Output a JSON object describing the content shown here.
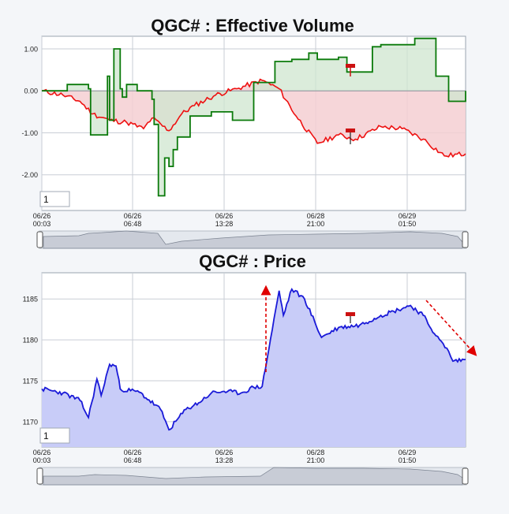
{
  "charts": [
    {
      "title": "QGC# : Effective Volume",
      "input_value": "1",
      "x_ticks": [
        {
          "date": "06/26",
          "time": "00:03"
        },
        {
          "date": "06/26",
          "time": "06:48"
        },
        {
          "date": "06/26",
          "time": "13:28"
        },
        {
          "date": "06/28",
          "time": "21:00"
        },
        {
          "date": "06/29",
          "time": "01:50"
        }
      ]
    },
    {
      "title": "QGC# : Price",
      "input_value": "1",
      "x_ticks": [
        {
          "date": "06/26",
          "time": "00:03"
        },
        {
          "date": "06/26",
          "time": "06:48"
        },
        {
          "date": "06/26",
          "time": "13:28"
        },
        {
          "date": "06/28",
          "time": "21:00"
        },
        {
          "date": "06/29",
          "time": "01:50"
        }
      ]
    }
  ],
  "colors": {
    "green_line": "#0a7a0a",
    "red_line": "#ee1111",
    "green_fill": "#cfe6cf",
    "red_fill": "#f5cfd2",
    "blue_line": "#1a1ad8",
    "blue_fill": "#c8ccf8",
    "marker": "#cc1111"
  },
  "chart_data": [
    {
      "type": "line",
      "title": "QGC# : Effective Volume",
      "x_tick_labels": [
        "06/26 00:03",
        "06/26 06:48",
        "06/26 13:28",
        "06/28 21:00",
        "06/29 01:50"
      ],
      "y_tick_labels": [
        "1.00",
        "0.00",
        "-1.00",
        "-2.00"
      ],
      "ylim": [
        -2.85,
        1.3
      ],
      "grid": true,
      "series": [
        {
          "color": "green",
          "x": [
            0,
            0.6,
            1.1,
            1.15,
            1.55,
            1.6,
            1.7,
            1.85,
            1.9,
            2.0,
            2.25,
            2.6,
            2.65,
            2.75,
            2.9,
            3.0,
            3.1,
            3.2,
            3.5,
            4.0,
            4.5,
            5.0,
            5.5,
            5.9,
            6.3,
            6.5,
            7.0,
            7.2,
            7.8,
            8.0,
            8.8,
            9.3,
            9.6,
            10.0
          ],
          "y": [
            0,
            0.15,
            0.05,
            -1.05,
            0.35,
            -0.7,
            1.0,
            0.05,
            -0.15,
            0.15,
            0.0,
            -0.2,
            -0.8,
            -2.5,
            -1.6,
            -1.8,
            -1.4,
            -1.1,
            -0.6,
            -0.5,
            -0.7,
            0.2,
            0.7,
            0.75,
            0.9,
            0.75,
            0.8,
            0.45,
            1.05,
            1.1,
            1.25,
            0.35,
            -0.25,
            0.0
          ]
        },
        {
          "color": "red",
          "x": [
            0,
            0.5,
            0.9,
            1.2,
            1.6,
            2.0,
            2.4,
            2.6,
            3.0,
            3.3,
            3.6,
            4.1,
            4.6,
            5.2,
            5.6,
            6.0,
            6.5,
            7.0,
            7.4,
            8.0,
            8.5,
            9.0,
            9.5,
            10.0
          ],
          "y": [
            0,
            -0.1,
            -0.25,
            -0.55,
            -0.7,
            -0.75,
            -0.9,
            -0.65,
            -0.95,
            -0.55,
            -0.35,
            -0.1,
            0.05,
            0.25,
            0.05,
            -0.6,
            -1.25,
            -1.05,
            -1.15,
            -0.85,
            -0.9,
            -1.15,
            -1.55,
            -1.5
          ]
        }
      ]
    },
    {
      "type": "area",
      "title": "QGC# : Price",
      "x_tick_labels": [
        "06/26 00:03",
        "06/26 06:48",
        "06/26 13:28",
        "06/28 21:00",
        "06/29 01:50"
      ],
      "y_tick_labels": [
        "1185",
        "1180",
        "1175",
        "1170"
      ],
      "ylim": [
        1166.9,
        1188.2
      ],
      "grid": true,
      "series": [
        {
          "color": "blue",
          "x": [
            0,
            0.5,
            0.9,
            1.1,
            1.3,
            1.4,
            1.6,
            1.75,
            1.85,
            2.3,
            2.8,
            3.0,
            3.4,
            3.7,
            4.0,
            4.3,
            4.7,
            5.0,
            5.2,
            5.6,
            5.7,
            5.9,
            6.2,
            6.6,
            7.0,
            7.5,
            8.0,
            8.3,
            8.7,
            9.0,
            9.3,
            9.6,
            9.7,
            10.0
          ],
          "y": [
            1174.0,
            1173.5,
            1172.6,
            1170.5,
            1175.2,
            1173.2,
            1177.0,
            1176.8,
            1174.0,
            1173.6,
            1171.5,
            1169.0,
            1171.5,
            1172.3,
            1173.5,
            1173.7,
            1173.5,
            1174.2,
            1174.3,
            1186.0,
            1183.0,
            1186.2,
            1185.0,
            1180.3,
            1181.5,
            1181.8,
            1183.0,
            1183.5,
            1184.2,
            1183.0,
            1180.5,
            1178.6,
            1177.4,
            1177.6
          ]
        }
      ],
      "annotations": [
        {
          "type": "arrow",
          "direction": "up",
          "style": "dashed red"
        },
        {
          "type": "arrow",
          "direction": "down-right",
          "style": "dashed red"
        }
      ]
    }
  ]
}
